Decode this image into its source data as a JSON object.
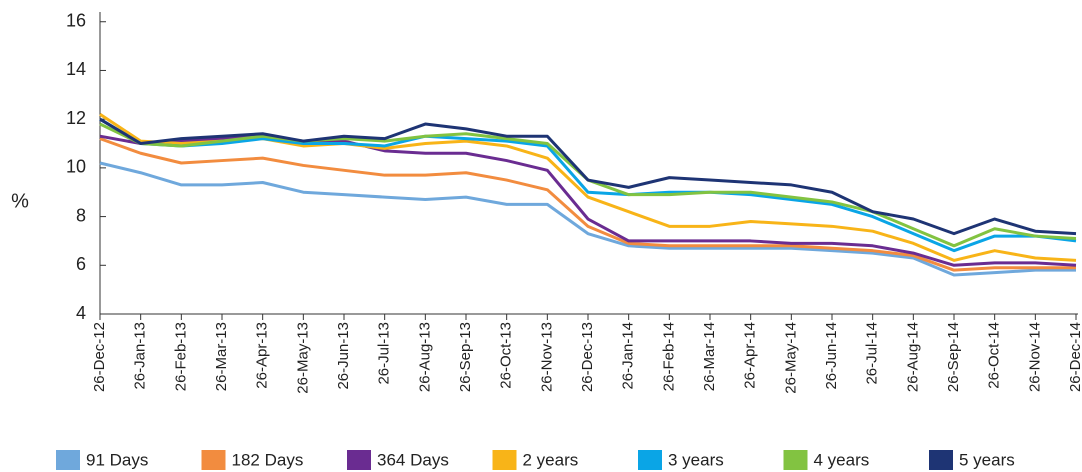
{
  "chart_data": {
    "type": "line",
    "y_label": "%",
    "categories": [
      "26-Dec-12",
      "26-Jan-13",
      "26-Feb-13",
      "26-Mar-13",
      "26-Apr-13",
      "26-May-13",
      "26-Jun-13",
      "26-Jul-13",
      "26-Aug-13",
      "26-Sep-13",
      "26-Oct-13",
      "26-Nov-13",
      "26-Dec-13",
      "26-Jan-14",
      "26-Feb-14",
      "26-Mar-14",
      "26-Apr-14",
      "26-May-14",
      "26-Jun-14",
      "26-Jul-14",
      "26-Aug-14",
      "26-Sep-14",
      "26-Oct-14",
      "26-Nov-14",
      "26-Dec-14"
    ],
    "ylim": [
      4,
      16.4
    ],
    "yticks": [
      4,
      6,
      8,
      10,
      12,
      14,
      16
    ],
    "series": [
      {
        "name": "91 Days",
        "color": "#6fa8dc",
        "values": [
          10.2,
          9.8,
          9.3,
          9.3,
          9.4,
          9.0,
          8.9,
          8.8,
          8.7,
          8.8,
          8.5,
          8.5,
          7.3,
          6.8,
          6.7,
          6.7,
          6.7,
          6.7,
          6.6,
          6.5,
          6.3,
          5.6,
          5.7,
          5.8,
          5.8
        ]
      },
      {
        "name": "182 Days",
        "color": "#f28c3f",
        "values": [
          11.2,
          10.6,
          10.2,
          10.3,
          10.4,
          10.1,
          9.9,
          9.7,
          9.7,
          9.8,
          9.5,
          9.1,
          7.6,
          6.9,
          6.8,
          6.8,
          6.8,
          6.8,
          6.7,
          6.6,
          6.4,
          5.8,
          5.9,
          5.9,
          5.9
        ]
      },
      {
        "name": "364 Days",
        "color": "#6a2c91",
        "values": [
          11.3,
          11.0,
          11.1,
          11.2,
          11.3,
          11.0,
          11.1,
          10.7,
          10.6,
          10.6,
          10.3,
          9.9,
          7.9,
          7.0,
          7.0,
          7.0,
          7.0,
          6.9,
          6.9,
          6.8,
          6.5,
          6.0,
          6.1,
          6.1,
          6.0
        ]
      },
      {
        "name": "2 years",
        "color": "#f8b418",
        "values": [
          12.2,
          11.1,
          11.0,
          11.1,
          11.2,
          10.9,
          11.0,
          10.8,
          11.0,
          11.1,
          10.9,
          10.4,
          8.8,
          8.2,
          7.6,
          7.6,
          7.8,
          7.7,
          7.6,
          7.4,
          6.9,
          6.2,
          6.6,
          6.3,
          6.2
        ]
      },
      {
        "name": "3 years",
        "color": "#0aa5e6",
        "values": [
          12.0,
          11.0,
          10.9,
          11.0,
          11.2,
          11.0,
          11.0,
          10.9,
          11.3,
          11.2,
          11.1,
          10.9,
          9.0,
          8.9,
          9.0,
          9.0,
          8.9,
          8.7,
          8.5,
          8.0,
          7.3,
          6.6,
          7.2,
          7.2,
          7.0
        ]
      },
      {
        "name": "4 years",
        "color": "#82c341",
        "values": [
          11.8,
          11.0,
          10.9,
          11.1,
          11.3,
          11.1,
          11.2,
          11.1,
          11.3,
          11.4,
          11.2,
          11.0,
          9.5,
          8.9,
          8.9,
          9.0,
          9.0,
          8.8,
          8.6,
          8.2,
          7.5,
          6.8,
          7.5,
          7.2,
          7.1
        ]
      },
      {
        "name": "5 years",
        "color": "#1e3474",
        "values": [
          12.0,
          11.0,
          11.2,
          11.3,
          11.4,
          11.1,
          11.3,
          11.2,
          11.8,
          11.6,
          11.3,
          11.3,
          9.5,
          9.2,
          9.6,
          9.5,
          9.4,
          9.3,
          9.0,
          8.2,
          7.9,
          7.3,
          7.9,
          7.4,
          7.3
        ]
      }
    ]
  }
}
